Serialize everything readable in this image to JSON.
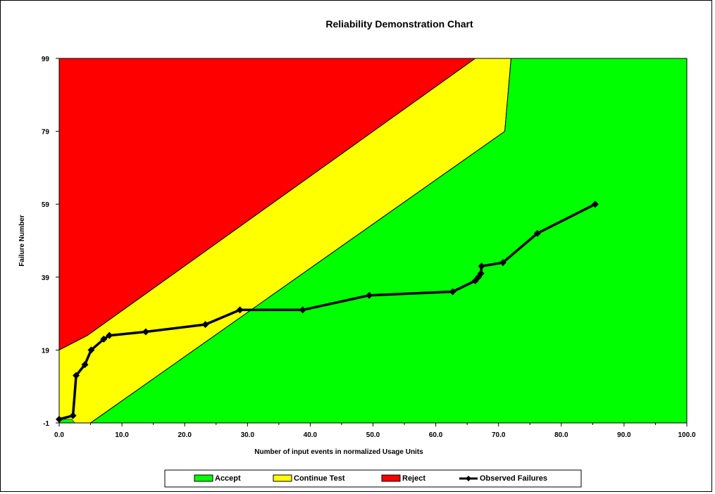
{
  "chart_data": {
    "type": "area",
    "title": "Reliability Demonstration Chart",
    "xlabel": "Number of input events in normalized Usage Units",
    "ylabel": "Failure Number",
    "xlim": [
      0,
      100
    ],
    "ylim": [
      -1,
      99
    ],
    "x_ticks": [
      "0.0",
      "10.0",
      "20.0",
      "30.0",
      "40.0",
      "50.0",
      "60.0",
      "70.0",
      "80.0",
      "90.0",
      "100.0"
    ],
    "y_ticks": [
      "-1",
      "19",
      "39",
      "59",
      "79",
      "99"
    ],
    "regions": [
      {
        "name": "Accept",
        "color": "#00ff00",
        "description_points": [
          [
            5.0,
            -1
          ],
          [
            8.3,
            3
          ],
          [
            71.0,
            79
          ],
          [
            72.0,
            99
          ],
          [
            100,
            99
          ],
          [
            100,
            -1
          ]
        ]
      },
      {
        "name": "Continue Test",
        "color": "#ffff00",
        "boundary_lower": [
          [
            5.0,
            -1
          ],
          [
            8.3,
            3
          ],
          [
            71.0,
            79
          ],
          [
            72.0,
            99
          ]
        ],
        "boundary_upper": [
          [
            0,
            19
          ],
          [
            4.5,
            23
          ],
          [
            66.3,
            99
          ]
        ]
      },
      {
        "name": "Reject",
        "color": "#ff0000",
        "boundary_lower": [
          [
            0,
            19
          ],
          [
            4.5,
            23
          ],
          [
            66.3,
            99
          ]
        ]
      }
    ],
    "accept_corner": [
      [
        0,
        0
      ],
      [
        2.0,
        0
      ],
      [
        2.5,
        -1
      ],
      [
        0,
        -1
      ]
    ],
    "series": [
      {
        "name": "Observed Failures",
        "color": "#000000",
        "x": [
          0.0,
          2.2,
          2.7,
          4.1,
          5.1,
          7.1,
          8.0,
          13.8,
          23.3,
          28.8,
          38.8,
          49.4,
          62.7,
          66.3,
          66.8,
          67.2,
          67.3,
          70.7,
          76.2,
          85.4
        ],
        "y": [
          0,
          1,
          12,
          15,
          19,
          22,
          23,
          24,
          26,
          30,
          30,
          34,
          35,
          38,
          39,
          40,
          42,
          43,
          51,
          59
        ]
      }
    ],
    "legend": {
      "placement": "bottom",
      "items": [
        {
          "label": "Accept",
          "color": "#00ff00",
          "kind": "box"
        },
        {
          "label": "Continue Test",
          "color": "#ffff00",
          "kind": "box"
        },
        {
          "label": "Reject",
          "color": "#ff0000",
          "kind": "box"
        },
        {
          "label": "Observed Failures",
          "color": "#000000",
          "kind": "line"
        }
      ]
    }
  }
}
